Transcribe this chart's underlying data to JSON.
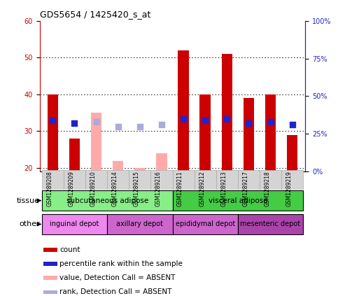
{
  "title": "GDS5654 / 1425420_s_at",
  "samples": [
    "GSM1289208",
    "GSM1289209",
    "GSM1289210",
    "GSM1289214",
    "GSM1289215",
    "GSM1289216",
    "GSM1289211",
    "GSM1289212",
    "GSM1289213",
    "GSM1289217",
    "GSM1289218",
    "GSM1289219"
  ],
  "bar_values": [
    40,
    28,
    20,
    20,
    20,
    20,
    52,
    40,
    51,
    39,
    40,
    29
  ],
  "bar_absent": [
    null,
    null,
    35,
    22,
    20,
    24,
    null,
    null,
    null,
    null,
    null,
    null
  ],
  "rank_values": [
    34,
    32,
    null,
    null,
    null,
    null,
    35,
    34,
    35,
    32,
    33,
    31
  ],
  "rank_absent": [
    null,
    null,
    33,
    30,
    30,
    31,
    null,
    null,
    null,
    null,
    null,
    null
  ],
  "is_absent": [
    false,
    false,
    true,
    true,
    true,
    true,
    false,
    false,
    false,
    false,
    false,
    false
  ],
  "bar_color": "#cc0000",
  "bar_absent_color": "#ffaaaa",
  "rank_color": "#2222cc",
  "rank_absent_color": "#aaaadd",
  "ylim_left": [
    19,
    60
  ],
  "ylim_right": [
    0,
    100
  ],
  "yticks_left": [
    20,
    30,
    40,
    50,
    60
  ],
  "yticks_right": [
    0,
    25,
    50,
    75,
    100
  ],
  "ytick_labels_right": [
    "0%",
    "25%",
    "50%",
    "75%",
    "100%"
  ],
  "tissue_groups": [
    {
      "label": "subcutaneous adipose",
      "start": 0,
      "end": 6,
      "color": "#88ee88"
    },
    {
      "label": "visceral adipose",
      "start": 6,
      "end": 12,
      "color": "#44cc44"
    }
  ],
  "other_groups": [
    {
      "label": "inguinal depot",
      "start": 0,
      "end": 3,
      "color": "#ee88ee"
    },
    {
      "label": "axillary depot",
      "start": 3,
      "end": 6,
      "color": "#cc66cc"
    },
    {
      "label": "epididymal depot",
      "start": 6,
      "end": 9,
      "color": "#cc66cc"
    },
    {
      "label": "mesenteric depot",
      "start": 9,
      "end": 12,
      "color": "#aa44aa"
    }
  ],
  "legend_items": [
    {
      "label": "count",
      "color": "#cc0000"
    },
    {
      "label": "percentile rank within the sample",
      "color": "#2222cc"
    },
    {
      "label": "value, Detection Call = ABSENT",
      "color": "#ffaaaa"
    },
    {
      "label": "rank, Detection Call = ABSENT",
      "color": "#aaaadd"
    }
  ],
  "bar_width": 0.5,
  "rank_marker_size": 35,
  "axis_color_left": "#cc0000",
  "axis_color_right": "#2222cc",
  "grid_color": "#000000",
  "sample_col_color": "#d4d4d4",
  "sample_col_edge": "#aaaaaa"
}
